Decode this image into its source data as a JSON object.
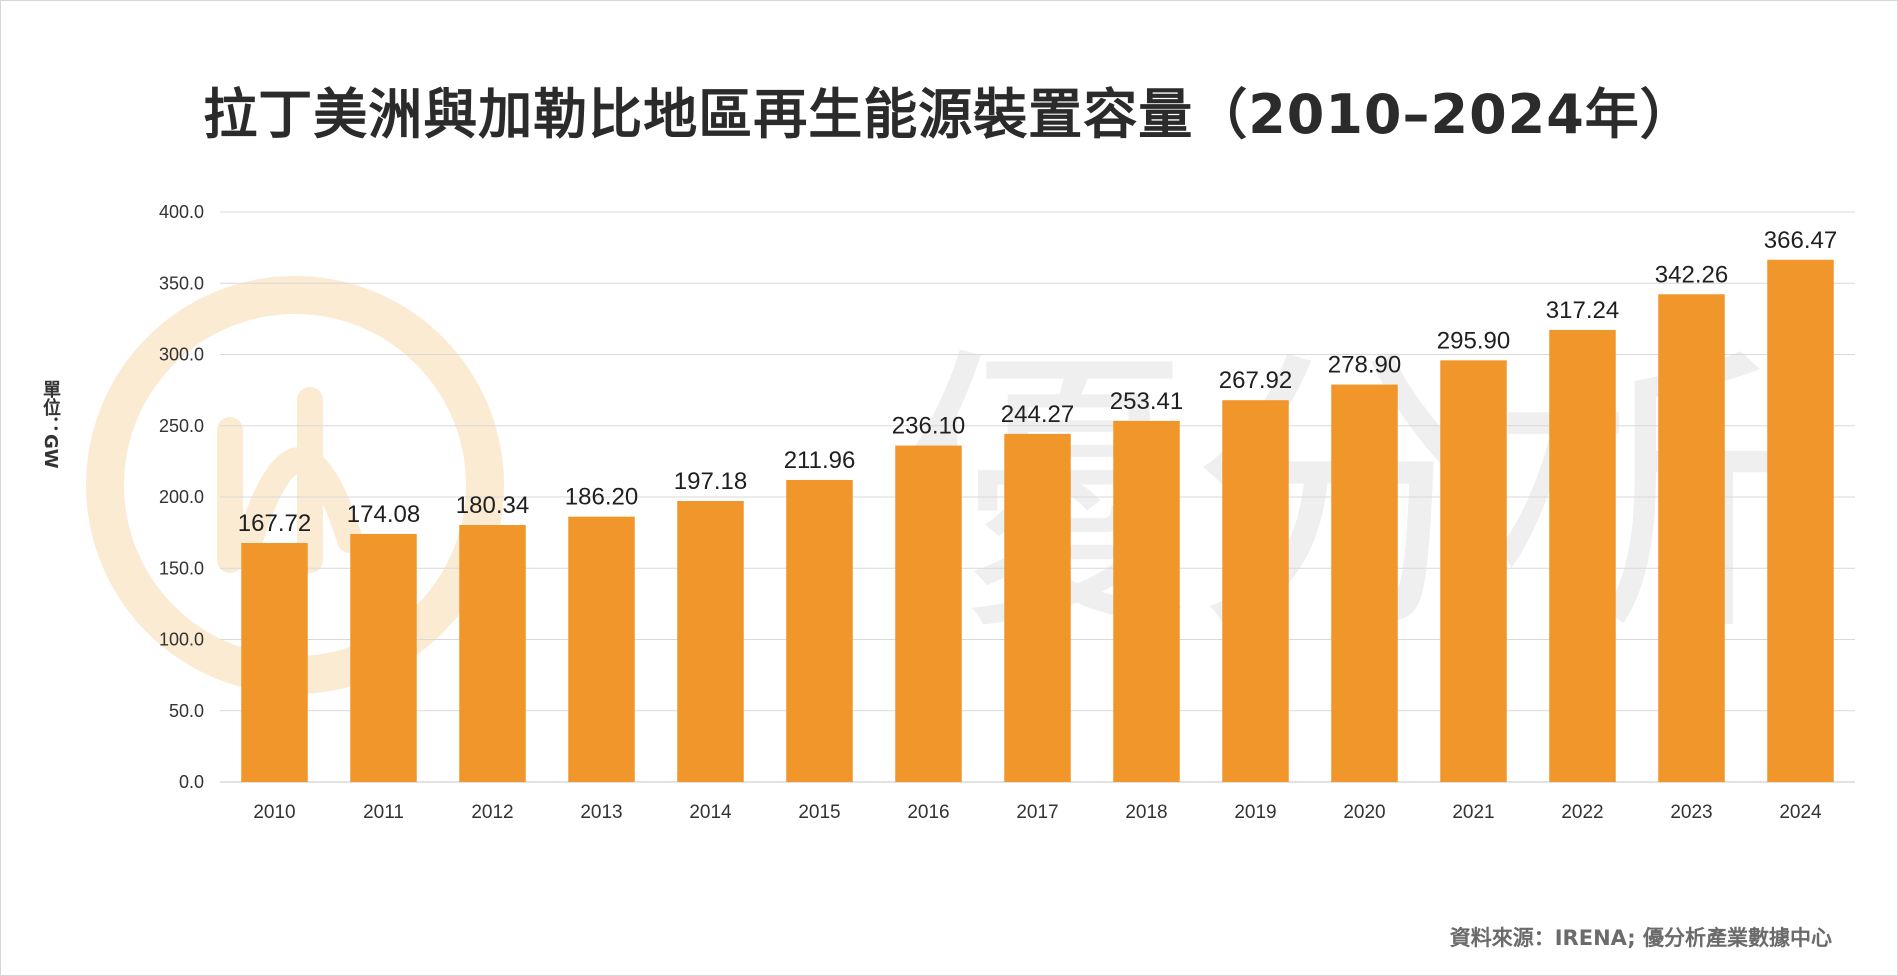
{
  "page": {
    "title": "拉丁美洲與加勒比地區再生能源裝置容量（2010–2024年）",
    "y_unit": "單位：GW",
    "source": "資料來源：IRENA; 優分析產業數據中心",
    "watermark_text": "優分析"
  },
  "colors": {
    "bar": "#F0962A",
    "grid": "#D9D9D9",
    "axis_text": "#333333",
    "label_text": "#1f1f1f",
    "watermark_ring": "#FCEBD3",
    "watermark_glyph": "#EFEFEF"
  },
  "chart_data": {
    "type": "bar",
    "title": "拉丁美洲與加勒比地區再生能源裝置容量（2010–2024年）",
    "xlabel": "",
    "ylabel": "單位：GW",
    "ylim": [
      0,
      400
    ],
    "yticks": [
      "0.0",
      "50.0",
      "100.0",
      "150.0",
      "200.0",
      "250.0",
      "300.0",
      "350.0",
      "400.0"
    ],
    "ytick_values": [
      0,
      50,
      100,
      150,
      200,
      250,
      300,
      350,
      400
    ],
    "grid": true,
    "categories": [
      "2010",
      "2011",
      "2012",
      "2013",
      "2014",
      "2015",
      "2016",
      "2017",
      "2018",
      "2019",
      "2020",
      "2021",
      "2022",
      "2023",
      "2024"
    ],
    "values": [
      167.72,
      174.08,
      180.34,
      186.2,
      197.18,
      211.96,
      236.1,
      244.27,
      253.41,
      267.92,
      278.9,
      295.9,
      317.24,
      342.26,
      366.47
    ],
    "value_labels": [
      "167.72",
      "174.08",
      "180.34",
      "186.20",
      "197.18",
      "211.96",
      "236.10",
      "244.27",
      "253.41",
      "267.92",
      "278.90",
      "295.90",
      "317.24",
      "342.26",
      "366.47"
    ]
  }
}
